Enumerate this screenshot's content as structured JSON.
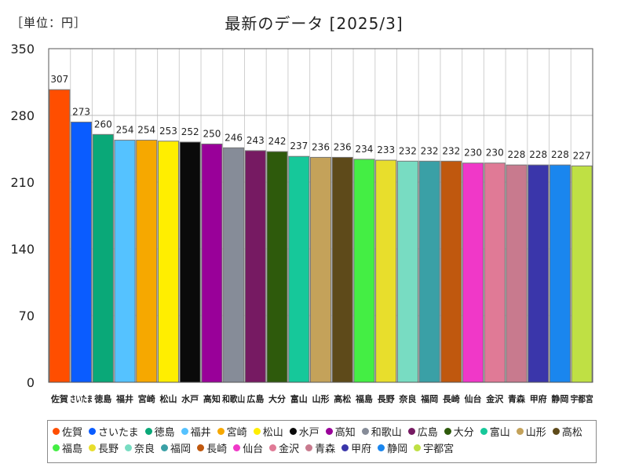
{
  "header": {
    "unit_label": "［単位：円］",
    "title": "最新のデータ [2025/3]"
  },
  "chart_data": {
    "type": "bar",
    "title": "最新のデータ [2025/3]",
    "unit": "［単位：円］",
    "ylim": [
      0,
      350
    ],
    "yticks": [
      0,
      70,
      140,
      210,
      280,
      350
    ],
    "grid": true,
    "legend_position": "bottom",
    "categories": [
      "佐賀",
      "さいたま",
      "徳島",
      "福井",
      "宮崎",
      "松山",
      "水戸",
      "高知",
      "和歌山",
      "広島",
      "大分",
      "富山",
      "山形",
      "高松",
      "福島",
      "長野",
      "奈良",
      "福岡",
      "長崎",
      "仙台",
      "金沢",
      "青森",
      "甲府",
      "静岡",
      "宇都宮"
    ],
    "values": [
      307,
      273,
      260,
      254,
      254,
      253,
      252,
      250,
      246,
      243,
      242,
      237,
      236,
      236,
      234,
      233,
      232,
      232,
      232,
      230,
      230,
      228,
      228,
      228,
      227
    ],
    "colors": [
      "#ff4e00",
      "#0a5cff",
      "#0aa878",
      "#55c2ff",
      "#f6a800",
      "#ffee00",
      "#0a0a0a",
      "#990099",
      "#868c98",
      "#761a62",
      "#2e5a0c",
      "#16c89a",
      "#c4a25a",
      "#5e4a1a",
      "#44ee44",
      "#e8de2c",
      "#78dcc2",
      "#3aa0a6",
      "#c0580e",
      "#f038c8",
      "#e07a96",
      "#c87a8e",
      "#3a36aa",
      "#1a86ee",
      "#bfe044"
    ]
  }
}
